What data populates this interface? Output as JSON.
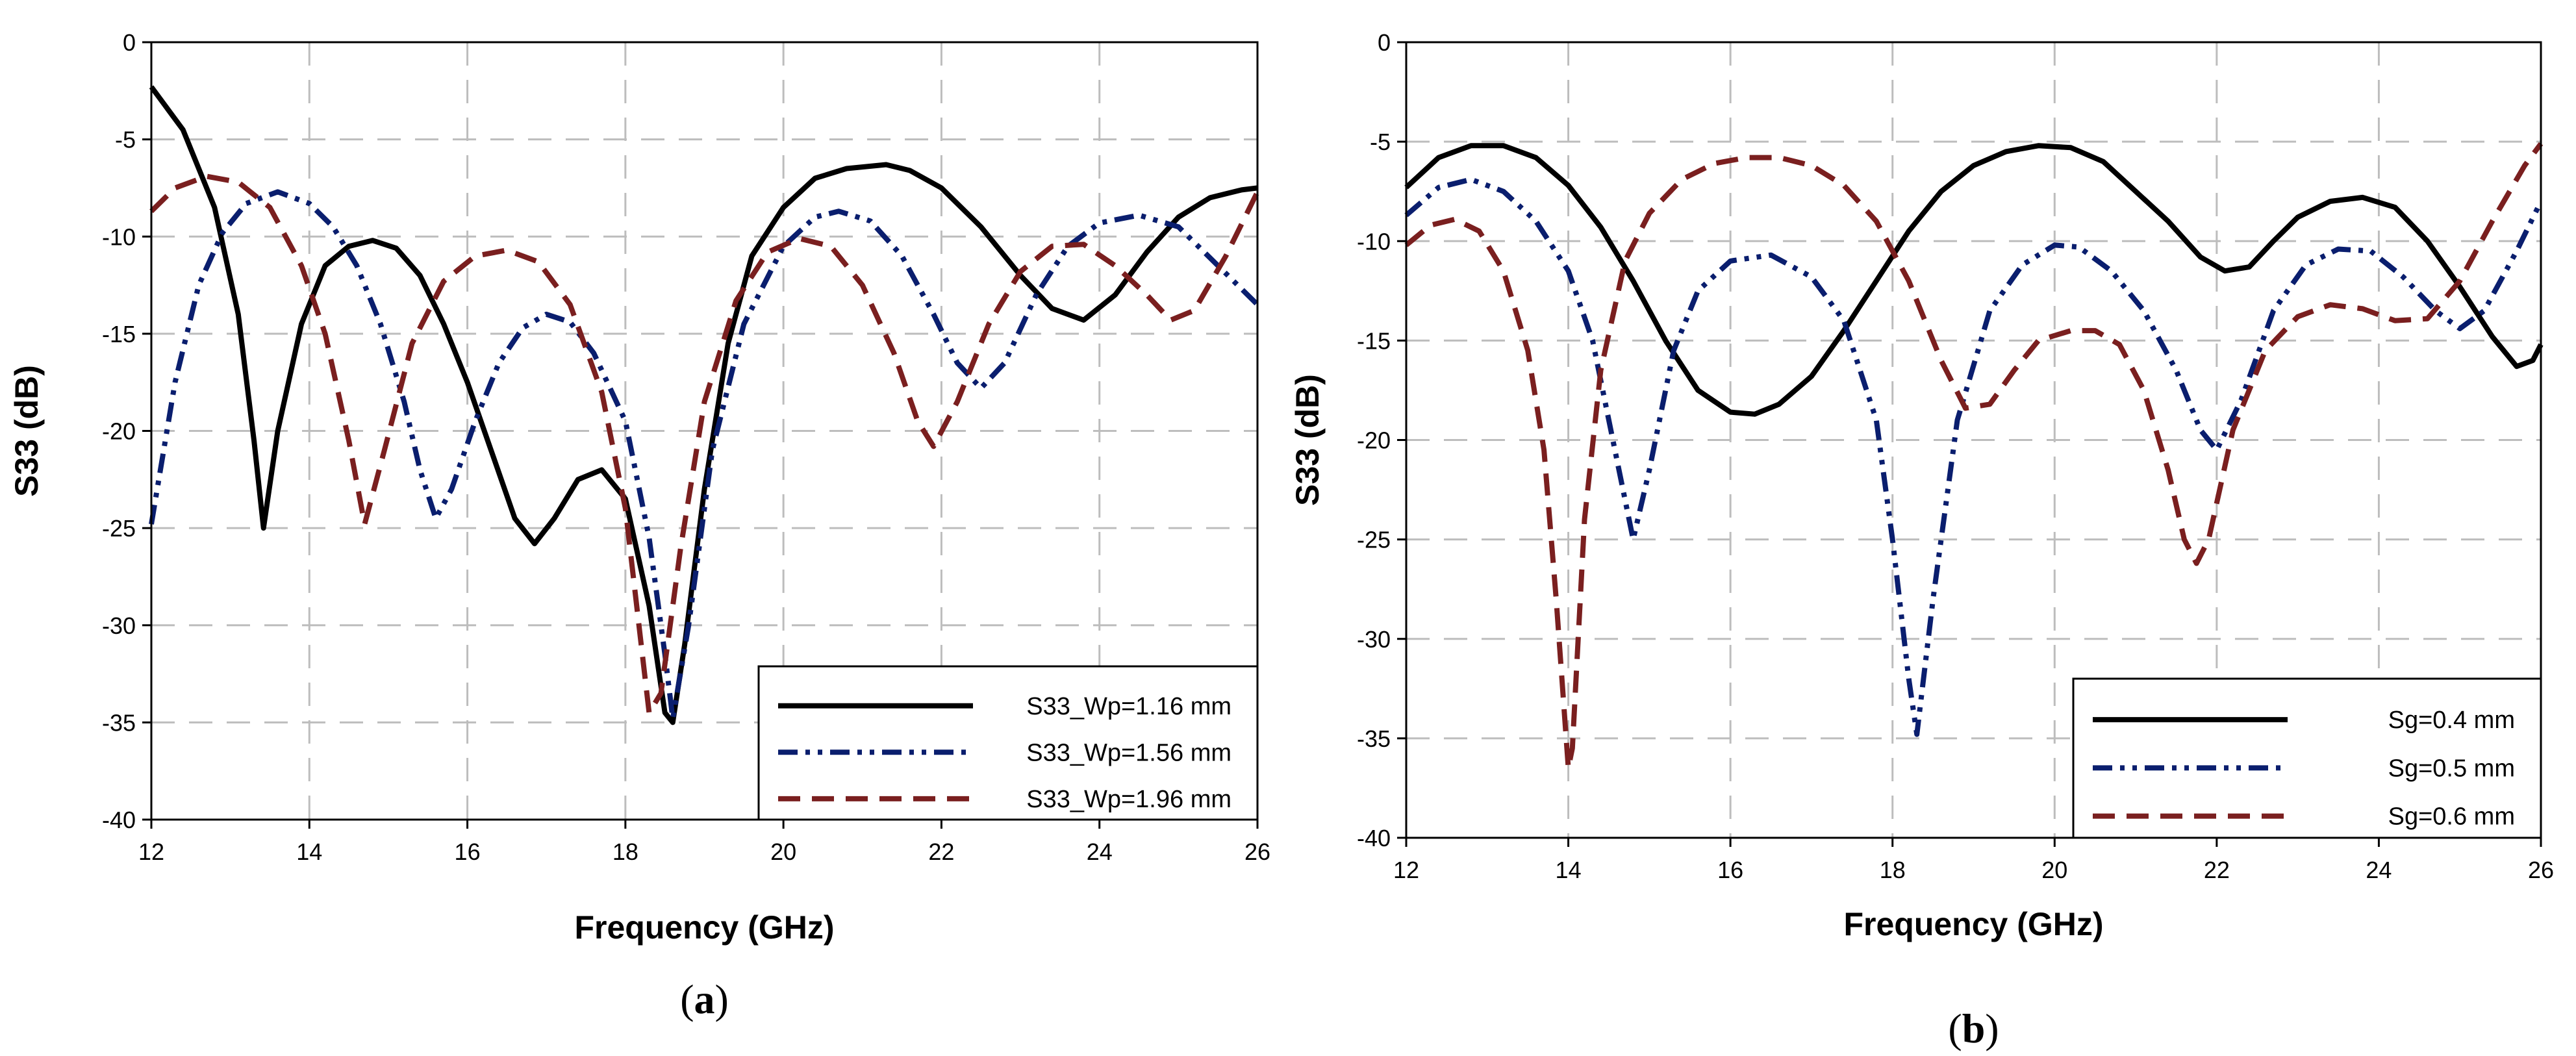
{
  "chart_data": [
    {
      "type": "line",
      "panel_label": "a",
      "xlabel": "Frequency (GHz)",
      "ylabel": "S33 (dB)",
      "xlim": [
        12,
        26
      ],
      "ylim": [
        -40,
        0
      ],
      "xticks": [
        12,
        14,
        16,
        18,
        20,
        22,
        24,
        26
      ],
      "yticks": [
        0,
        -5,
        -10,
        -15,
        -20,
        -25,
        -30,
        -35,
        -40
      ],
      "grid": "dashed",
      "legend_position": "bottom-right",
      "series": [
        {
          "name": "S33_Wp=1.16 mm",
          "color": "#000000",
          "style": "solid",
          "x": [
            12.0,
            12.4,
            12.8,
            13.1,
            13.3,
            13.42,
            13.6,
            13.9,
            14.2,
            14.5,
            14.8,
            15.1,
            15.4,
            15.7,
            16.0,
            16.3,
            16.6,
            16.85,
            17.1,
            17.4,
            17.7,
            18.0,
            18.3,
            18.5,
            18.6,
            18.75,
            19.0,
            19.3,
            19.6,
            20.0,
            20.4,
            20.8,
            21.3,
            21.6,
            22.0,
            22.5,
            23.0,
            23.4,
            23.8,
            24.2,
            24.6,
            25.0,
            25.4,
            25.8,
            26.0
          ],
          "y": [
            -2.3,
            -4.5,
            -8.5,
            -14.0,
            -20.5,
            -25.0,
            -20.0,
            -14.5,
            -11.5,
            -10.5,
            -10.2,
            -10.6,
            -12.0,
            -14.5,
            -17.5,
            -21.0,
            -24.5,
            -25.8,
            -24.5,
            -22.5,
            -22.0,
            -23.5,
            -29.0,
            -34.5,
            -35.0,
            -31.0,
            -23.0,
            -15.5,
            -11.0,
            -8.5,
            -7.0,
            -6.5,
            -6.3,
            -6.6,
            -7.5,
            -9.5,
            -12.0,
            -13.7,
            -14.3,
            -13.0,
            -10.8,
            -9.0,
            -8.0,
            -7.6,
            -7.5
          ]
        },
        {
          "name": "S33_Wp=1.56 mm",
          "color": "#0a1e6e",
          "style": "dashdotdot",
          "x": [
            12.0,
            12.3,
            12.6,
            12.9,
            13.2,
            13.6,
            14.0,
            14.3,
            14.6,
            14.9,
            15.2,
            15.4,
            15.6,
            15.8,
            16.1,
            16.4,
            16.7,
            17.0,
            17.3,
            17.6,
            18.0,
            18.3,
            18.5,
            18.6,
            18.8,
            19.1,
            19.5,
            20.0,
            20.4,
            20.7,
            21.1,
            21.5,
            21.9,
            22.2,
            22.5,
            22.8,
            23.2,
            23.6,
            24.0,
            24.5,
            25.0,
            25.5,
            26.0
          ],
          "y": [
            -24.8,
            -17.5,
            -12.5,
            -9.8,
            -8.3,
            -7.7,
            -8.3,
            -9.5,
            -11.5,
            -14.5,
            -18.5,
            -22.0,
            -24.5,
            -23.0,
            -19.5,
            -16.5,
            -14.7,
            -14.0,
            -14.4,
            -16.0,
            -19.5,
            -25.5,
            -31.5,
            -34.8,
            -30.0,
            -21.0,
            -14.5,
            -10.5,
            -9.0,
            -8.7,
            -9.2,
            -11.0,
            -14.0,
            -16.5,
            -17.8,
            -16.5,
            -13.0,
            -10.5,
            -9.3,
            -8.9,
            -9.5,
            -11.5,
            -13.5
          ]
        },
        {
          "name": "S33_Wp=1.96 mm",
          "color": "#7a1f1f",
          "style": "dashed",
          "x": [
            12.0,
            12.3,
            12.7,
            13.1,
            13.5,
            13.9,
            14.2,
            14.5,
            14.7,
            14.95,
            15.3,
            15.7,
            16.1,
            16.5,
            16.9,
            17.3,
            17.7,
            18.0,
            18.2,
            18.3,
            18.45,
            18.7,
            19.0,
            19.4,
            19.8,
            20.2,
            20.6,
            21.0,
            21.4,
            21.7,
            21.9,
            22.2,
            22.6,
            23.0,
            23.4,
            23.8,
            24.2,
            24.6,
            24.9,
            25.2,
            25.6,
            26.0
          ],
          "y": [
            -8.7,
            -7.5,
            -6.9,
            -7.2,
            -8.5,
            -11.5,
            -15.0,
            -20.5,
            -24.8,
            -21.0,
            -15.5,
            -12.3,
            -11.0,
            -10.7,
            -11.3,
            -13.5,
            -18.0,
            -24.0,
            -31.0,
            -34.5,
            -33.5,
            -26.0,
            -18.5,
            -13.3,
            -10.8,
            -10.1,
            -10.5,
            -12.5,
            -16.0,
            -19.5,
            -20.8,
            -18.5,
            -14.5,
            -11.8,
            -10.5,
            -10.4,
            -11.5,
            -13.0,
            -14.3,
            -13.8,
            -11.0,
            -7.7
          ]
        }
      ]
    },
    {
      "type": "line",
      "panel_label": "b",
      "xlabel": "Frequency (GHz)",
      "ylabel": "S33 (dB)",
      "xlim": [
        12,
        26
      ],
      "ylim": [
        -40,
        0
      ],
      "xticks": [
        12,
        14,
        16,
        18,
        20,
        22,
        24,
        26
      ],
      "yticks": [
        0,
        -5,
        -10,
        -15,
        -20,
        -25,
        -30,
        -35,
        -40
      ],
      "grid": "dashed",
      "legend_position": "bottom-right",
      "series": [
        {
          "name": "Sg=0.4 mm",
          "color": "#000000",
          "style": "solid",
          "x": [
            12.0,
            12.4,
            12.8,
            13.2,
            13.6,
            14.0,
            14.4,
            14.8,
            15.2,
            15.6,
            16.0,
            16.3,
            16.6,
            17.0,
            17.4,
            17.8,
            18.2,
            18.6,
            19.0,
            19.4,
            19.8,
            20.2,
            20.6,
            21.0,
            21.4,
            21.8,
            22.1,
            22.4,
            22.7,
            23.0,
            23.4,
            23.8,
            24.2,
            24.6,
            25.0,
            25.4,
            25.7,
            25.9,
            26.0
          ],
          "y": [
            -7.3,
            -5.8,
            -5.2,
            -5.2,
            -5.8,
            -7.2,
            -9.3,
            -12.0,
            -15.0,
            -17.5,
            -18.6,
            -18.7,
            -18.2,
            -16.8,
            -14.5,
            -12.0,
            -9.5,
            -7.5,
            -6.2,
            -5.5,
            -5.2,
            -5.3,
            -6.0,
            -7.5,
            -9.0,
            -10.8,
            -11.5,
            -11.3,
            -10.0,
            -8.8,
            -8.0,
            -7.8,
            -8.3,
            -10.0,
            -12.3,
            -14.8,
            -16.3,
            -16.0,
            -15.2
          ]
        },
        {
          "name": "Sg=0.5 mm",
          "color": "#0a1e6e",
          "style": "dashdotdot",
          "x": [
            12.0,
            12.4,
            12.8,
            13.2,
            13.6,
            14.0,
            14.3,
            14.6,
            14.8,
            15.0,
            15.3,
            15.6,
            16.0,
            16.5,
            17.0,
            17.4,
            17.8,
            18.0,
            18.2,
            18.3,
            18.5,
            18.8,
            19.2,
            19.6,
            20.0,
            20.3,
            20.7,
            21.1,
            21.5,
            21.8,
            22.0,
            22.3,
            22.7,
            23.1,
            23.5,
            23.9,
            24.3,
            24.7,
            25.0,
            25.3,
            25.7,
            26.0
          ],
          "y": [
            -8.7,
            -7.3,
            -6.9,
            -7.5,
            -9.0,
            -11.5,
            -15.0,
            -21.0,
            -25.0,
            -21.5,
            -15.5,
            -12.5,
            -11.0,
            -10.7,
            -11.8,
            -14.0,
            -19.0,
            -25.0,
            -32.0,
            -34.8,
            -28.0,
            -19.0,
            -13.5,
            -11.2,
            -10.2,
            -10.3,
            -11.5,
            -13.5,
            -16.5,
            -19.5,
            -20.5,
            -18.0,
            -13.5,
            -11.2,
            -10.4,
            -10.5,
            -11.8,
            -13.5,
            -14.4,
            -13.5,
            -10.5,
            -8.0
          ]
        },
        {
          "name": "Sg=0.6 mm",
          "color": "#7a1f1f",
          "style": "dashed",
          "x": [
            12.0,
            12.3,
            12.6,
            12.9,
            13.2,
            13.5,
            13.7,
            13.85,
            14.0,
            14.05,
            14.2,
            14.4,
            14.7,
            15.0,
            15.4,
            15.8,
            16.2,
            16.6,
            17.0,
            17.4,
            17.8,
            18.2,
            18.6,
            18.9,
            19.2,
            19.5,
            19.8,
            20.2,
            20.5,
            20.8,
            21.1,
            21.4,
            21.6,
            21.75,
            21.9,
            22.2,
            22.6,
            23.0,
            23.4,
            23.8,
            24.2,
            24.6,
            25.0,
            25.4,
            25.8,
            26.0
          ],
          "y": [
            -10.2,
            -9.2,
            -8.9,
            -9.5,
            -11.5,
            -15.5,
            -20.5,
            -28.0,
            -36.5,
            -35.5,
            -24.0,
            -16.5,
            -11.0,
            -8.6,
            -6.9,
            -6.1,
            -5.8,
            -5.8,
            -6.2,
            -7.2,
            -9.0,
            -12.0,
            -16.0,
            -18.4,
            -18.2,
            -16.5,
            -15.0,
            -14.5,
            -14.5,
            -15.2,
            -17.5,
            -21.5,
            -25.0,
            -26.2,
            -25.0,
            -19.5,
            -15.5,
            -13.8,
            -13.2,
            -13.4,
            -14.0,
            -13.9,
            -12.0,
            -9.0,
            -6.2,
            -5.1
          ]
        }
      ]
    }
  ]
}
